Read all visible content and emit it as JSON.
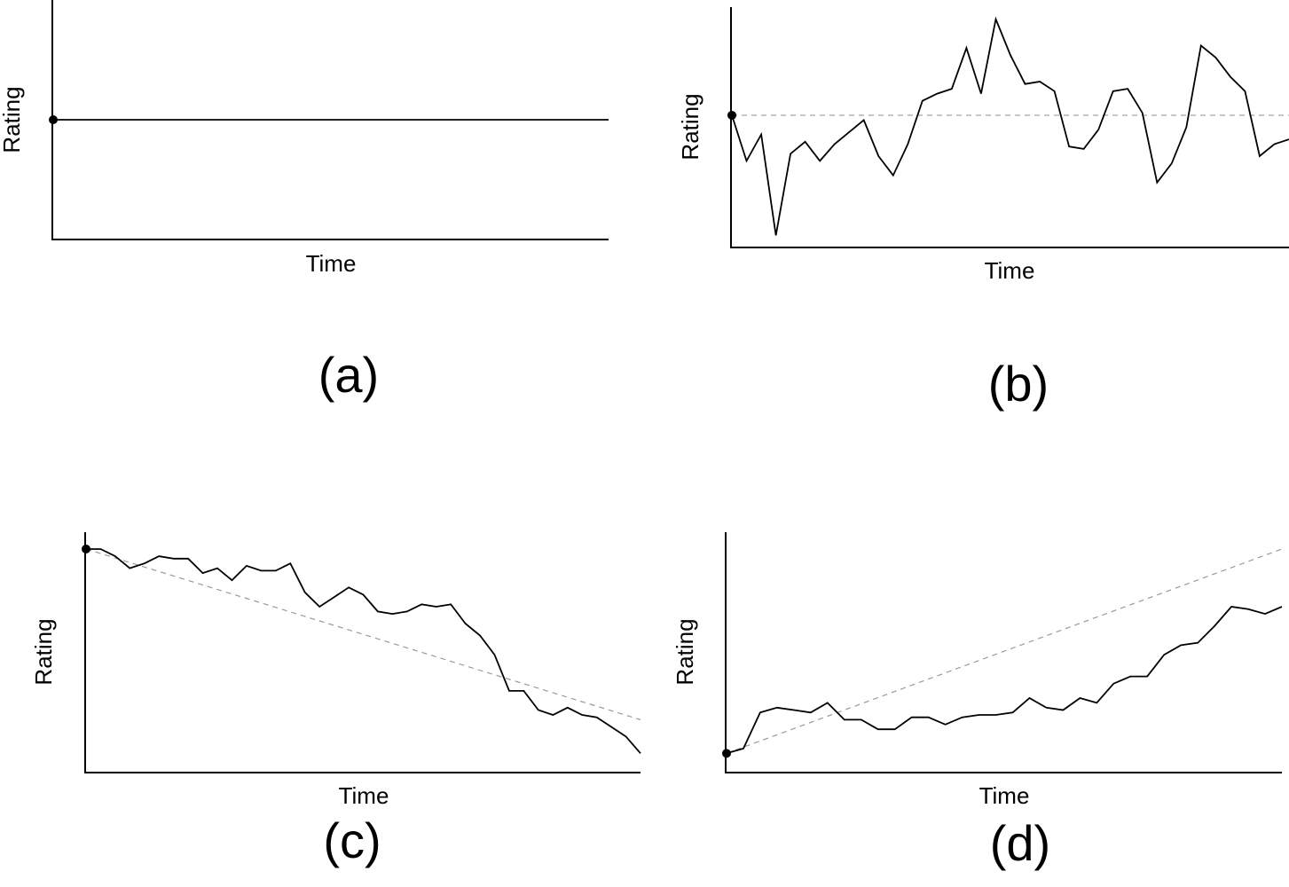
{
  "chart_data": [
    {
      "panel": "(a)",
      "type": "line",
      "xlabel": "Time",
      "ylabel": "Rating",
      "y": [
        0.5,
        0.5
      ]
    },
    {
      "panel": "(b)",
      "type": "line",
      "xlabel": "Time",
      "ylabel": "Rating",
      "reference": {
        "style": "dashed",
        "kind": "horizontal",
        "level": 0.55
      },
      "y": [
        0.55,
        0.36,
        0.47,
        0.05,
        0.39,
        0.44,
        0.36,
        0.43,
        0.48,
        0.53,
        0.38,
        0.3,
        0.43,
        0.61,
        0.64,
        0.66,
        0.83,
        0.64,
        0.95,
        0.8,
        0.68,
        0.69,
        0.65,
        0.42,
        0.41,
        0.49,
        0.65,
        0.66,
        0.56,
        0.27,
        0.35,
        0.5,
        0.84,
        0.79,
        0.71,
        0.65,
        0.38,
        0.43,
        0.45
      ]
    },
    {
      "panel": "(c)",
      "type": "line",
      "xlabel": "Time",
      "ylabel": "Rating",
      "reference": {
        "style": "dashed",
        "kind": "trend",
        "from": 0.93,
        "to": 0.22
      },
      "y": [
        0.93,
        0.93,
        0.9,
        0.85,
        0.87,
        0.9,
        0.89,
        0.89,
        0.83,
        0.85,
        0.8,
        0.86,
        0.84,
        0.84,
        0.87,
        0.75,
        0.69,
        0.73,
        0.77,
        0.74,
        0.67,
        0.66,
        0.67,
        0.7,
        0.69,
        0.7,
        0.62,
        0.57,
        0.49,
        0.34,
        0.34,
        0.26,
        0.24,
        0.27,
        0.24,
        0.23,
        0.19,
        0.15,
        0.08
      ]
    },
    {
      "panel": "(d)",
      "type": "line",
      "xlabel": "Time",
      "ylabel": "Rating",
      "reference": {
        "style": "dashed",
        "kind": "trend",
        "from": 0.08,
        "to": 0.93
      },
      "y": [
        0.08,
        0.1,
        0.25,
        0.27,
        0.26,
        0.25,
        0.29,
        0.22,
        0.22,
        0.18,
        0.18,
        0.23,
        0.23,
        0.2,
        0.23,
        0.24,
        0.24,
        0.25,
        0.31,
        0.27,
        0.26,
        0.31,
        0.29,
        0.37,
        0.4,
        0.4,
        0.49,
        0.53,
        0.54,
        0.61,
        0.69,
        0.68,
        0.66,
        0.69
      ]
    }
  ],
  "panel_labels": [
    "(a)",
    "(b)",
    "(c)",
    "(d)"
  ]
}
